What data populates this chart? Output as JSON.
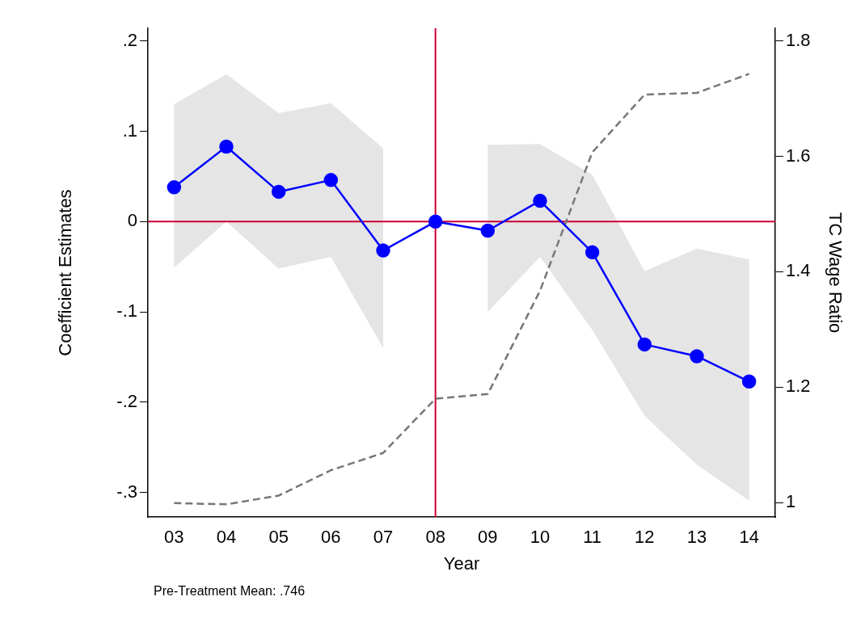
{
  "chart_data": {
    "type": "line",
    "categories": [
      "03",
      "04",
      "05",
      "06",
      "07",
      "08",
      "09",
      "10",
      "11",
      "12",
      "13",
      "14"
    ],
    "series": [
      {
        "color": "#0000ff",
        "marker": "circle",
        "line_style": "solid",
        "values": [
          0.038,
          0.083,
          0.033,
          0.046,
          -0.032,
          0,
          -0.01,
          0.023,
          -0.034,
          -0.136,
          -0.149,
          -0.177
        ],
        "lower": [
          -0.051,
          0,
          -0.052,
          -0.039,
          -0.14,
          null,
          -0.1,
          -0.039,
          -0.12,
          -0.215,
          -0.269,
          -0.309
        ],
        "upper": [
          0.13,
          0.163,
          0.12,
          0.131,
          0.081,
          null,
          0.085,
          0.086,
          0.052,
          -0.055,
          -0.03,
          -0.042
        ]
      },
      {
        "axis": "y2",
        "color": "#777777",
        "marker": "none",
        "line_style": "dashed",
        "values": [
          0.999,
          0.997,
          1.012,
          1.056,
          1.086,
          1.18,
          1.188,
          1.367,
          1.607,
          1.707,
          1.71,
          1.743
        ]
      }
    ],
    "ylim": [
      -0.327,
      0.214
    ],
    "yticks": [
      {
        "value": -0.3,
        "label": "-.3"
      },
      {
        "value": -0.2,
        "label": "-.2"
      },
      {
        "value": -0.1,
        "label": "-.1"
      },
      0,
      {
        "value": 0.1,
        "label": ".1"
      },
      {
        "value": 0.2,
        "label": ".2"
      }
    ],
    "y2lim": [
      0.975,
      1.822
    ],
    "y2ticks": [
      1,
      1.2,
      1.4,
      1.6,
      1.8
    ],
    "xlabel": "Year",
    "ylabel": "Coefficient Estimates",
    "y2label": "TC Wage Ratio",
    "ref_lines": [
      {
        "axis": "y",
        "value": 0,
        "color": "#cc0033"
      },
      {
        "axis": "x",
        "value": "08",
        "color": "#cc0033"
      }
    ],
    "annotations": [
      "Pre-Treatment Mean: .746"
    ],
    "grid": false,
    "legend": false
  }
}
